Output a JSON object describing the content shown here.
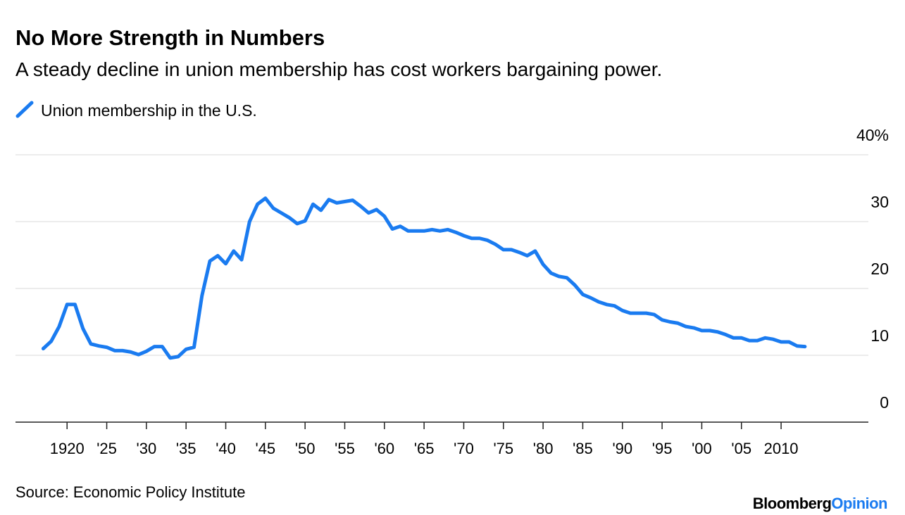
{
  "chart_data": {
    "type": "line",
    "title": "No More Strength in Numbers",
    "subtitle": "A steady decline in union membership has cost workers bargaining power.",
    "source": "Source: Economic Policy Institute",
    "brand": [
      "Bloomberg",
      "Opinion"
    ],
    "x": [
      1917,
      1918,
      1919,
      1920,
      1921,
      1922,
      1923,
      1924,
      1925,
      1926,
      1927,
      1928,
      1929,
      1930,
      1931,
      1932,
      1933,
      1934,
      1935,
      1936,
      1937,
      1938,
      1939,
      1940,
      1941,
      1942,
      1943,
      1944,
      1945,
      1946,
      1947,
      1948,
      1949,
      1950,
      1951,
      1952,
      1953,
      1954,
      1955,
      1956,
      1957,
      1958,
      1959,
      1960,
      1961,
      1962,
      1963,
      1964,
      1965,
      1966,
      1967,
      1968,
      1969,
      1970,
      1971,
      1972,
      1973,
      1974,
      1975,
      1976,
      1977,
      1978,
      1979,
      1980,
      1981,
      1982,
      1983,
      1984,
      1985,
      1986,
      1987,
      1988,
      1989,
      1990,
      1991,
      1992,
      1993,
      1994,
      1995,
      1996,
      1997,
      1998,
      1999,
      2000,
      2001,
      2002,
      2003,
      2004,
      2005,
      2006,
      2007,
      2008,
      2009,
      2010,
      2011,
      2012,
      2013
    ],
    "series": [
      {
        "name": "Union membership in the U.S.",
        "color": "#1a7bf0",
        "values": [
          11.0,
          12.1,
          14.3,
          17.6,
          17.6,
          14.0,
          11.7,
          11.4,
          11.2,
          10.7,
          10.7,
          10.5,
          10.1,
          10.6,
          11.3,
          11.3,
          9.6,
          9.8,
          10.9,
          11.2,
          18.9,
          24.1,
          24.9,
          23.7,
          25.6,
          24.3,
          30.0,
          32.6,
          33.5,
          32.0,
          31.3,
          30.6,
          29.7,
          30.1,
          32.6,
          31.7,
          33.3,
          32.8,
          33.0,
          33.2,
          32.3,
          31.3,
          31.8,
          30.8,
          28.9,
          29.3,
          28.6,
          28.6,
          28.6,
          28.8,
          28.6,
          28.8,
          28.4,
          27.9,
          27.5,
          27.5,
          27.2,
          26.6,
          25.8,
          25.8,
          25.4,
          24.9,
          25.6,
          23.6,
          22.3,
          21.8,
          21.6,
          20.5,
          19.1,
          18.6,
          18.0,
          17.6,
          17.4,
          16.7,
          16.3,
          16.3,
          16.3,
          16.1,
          15.3,
          15.0,
          14.8,
          14.3,
          14.1,
          13.7,
          13.7,
          13.5,
          13.1,
          12.6,
          12.6,
          12.2,
          12.2,
          12.6,
          12.4,
          12.0,
          12.0,
          11.4,
          11.3
        ]
      }
    ],
    "xlim": [
      1913.5,
      2021
    ],
    "ylim": [
      0,
      40
    ],
    "xticks": [
      1920,
      {
        "value": 1925,
        "label": "'25"
      },
      {
        "value": 1930,
        "label": "'30"
      },
      {
        "value": 1935,
        "label": "'35"
      },
      {
        "value": 1940,
        "label": "'40"
      },
      {
        "value": 1945,
        "label": "'45"
      },
      {
        "value": 1950,
        "label": "'50"
      },
      {
        "value": 1955,
        "label": "'55"
      },
      {
        "value": 1960,
        "label": "'60"
      },
      {
        "value": 1965,
        "label": "'65"
      },
      {
        "value": 1970,
        "label": "'70"
      },
      {
        "value": 1975,
        "label": "'75"
      },
      {
        "value": 1980,
        "label": "'80"
      },
      {
        "value": 1985,
        "label": "'85"
      },
      {
        "value": 1990,
        "label": "'90"
      },
      {
        "value": 1995,
        "label": "'95"
      },
      {
        "value": 2000,
        "label": "'00"
      },
      {
        "value": 2005,
        "label": "'05"
      },
      2010
    ],
    "yticks": [
      0,
      10,
      20,
      30,
      {
        "value": 40,
        "label": "40%"
      }
    ],
    "grid": true,
    "legend": "top-left"
  }
}
